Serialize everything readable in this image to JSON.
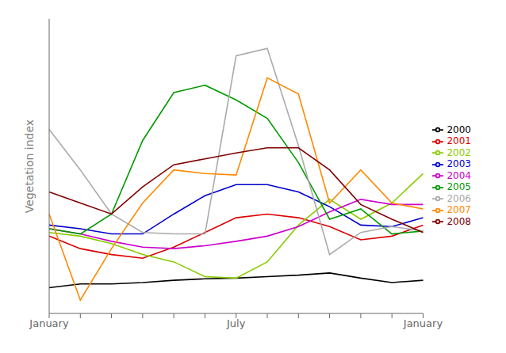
{
  "chart_data": {
    "type": "line",
    "ylabel": "Vegetation index",
    "categories": [
      "January",
      null,
      null,
      null,
      null,
      null,
      "July",
      null,
      null,
      null,
      null,
      null,
      "January"
    ],
    "series": [
      {
        "name": "2000",
        "color": "#000000",
        "values": [
          0.055,
          0.06,
          0.06,
          0.062,
          0.065,
          0.067,
          0.068,
          0.07,
          0.072,
          0.075,
          0.068,
          0.062,
          0.065
        ]
      },
      {
        "name": "2001",
        "color": "#dd0000",
        "values": [
          0.125,
          0.108,
          0.1,
          0.095,
          0.11,
          0.13,
          0.15,
          0.155,
          0.15,
          0.138,
          0.12,
          0.125,
          0.14
        ]
      },
      {
        "name": "2002",
        "color": "#88cc00",
        "values": [
          0.13,
          0.125,
          0.115,
          0.1,
          0.09,
          0.07,
          0.068,
          0.09,
          0.14,
          0.175,
          0.148,
          0.17,
          0.21
        ]
      },
      {
        "name": "2003",
        "color": "#0000cc",
        "values": [
          0.14,
          0.135,
          0.128,
          0.128,
          0.155,
          0.18,
          0.195,
          0.195,
          0.185,
          0.165,
          0.14,
          0.138,
          0.15
        ]
      },
      {
        "name": "2004",
        "color": "#cc00cc",
        "values": [
          0.135,
          0.128,
          0.118,
          0.11,
          0.108,
          0.112,
          0.118,
          0.125,
          0.138,
          0.158,
          0.175,
          0.168,
          0.168
        ]
      },
      {
        "name": "2005",
        "color": "#009900",
        "values": [
          0.135,
          0.128,
          0.155,
          0.255,
          0.32,
          0.33,
          0.31,
          0.285,
          0.225,
          0.148,
          0.162,
          0.128,
          0.132
        ]
      },
      {
        "name": "2006",
        "color": "#aaaaaa",
        "values": [
          0.27,
          0.215,
          0.155,
          0.13,
          0.128,
          0.128,
          0.37,
          0.38,
          0.248,
          0.1,
          0.13,
          0.138,
          0.132
        ]
      },
      {
        "name": "2007",
        "color": "#ff8800",
        "values": [
          0.155,
          0.038,
          0.108,
          0.17,
          0.215,
          0.21,
          0.208,
          0.34,
          0.318,
          0.17,
          0.215,
          0.17,
          0.162
        ]
      },
      {
        "name": "2008",
        "color": "#800000",
        "values": [
          0.185,
          0.17,
          0.155,
          0.192,
          0.222,
          0.23,
          0.238,
          0.245,
          0.245,
          0.215,
          0.168,
          0.148,
          0.13
        ]
      }
    ],
    "ylim": [
      0.02,
      0.42
    ],
    "tick_labels": "x",
    "legend": "right",
    "grid": false
  }
}
